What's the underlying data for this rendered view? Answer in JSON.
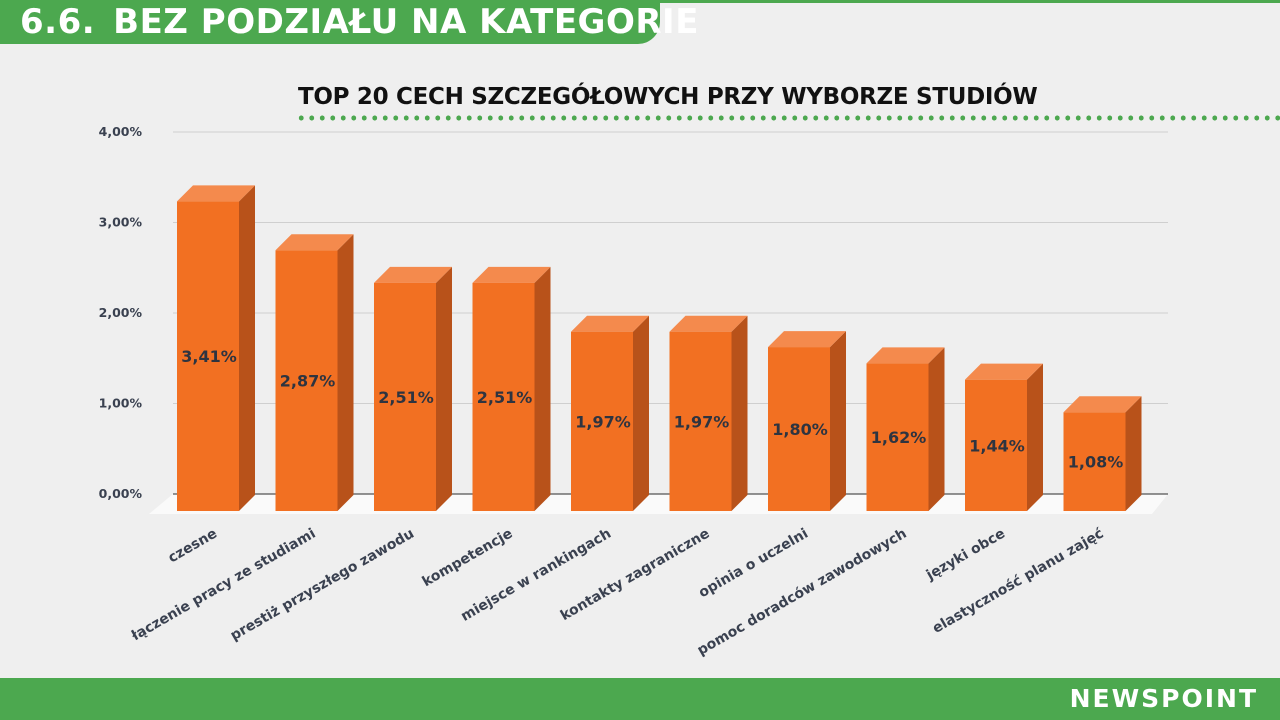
{
  "header": {
    "section_number": "6.6.",
    "title": "BEZ PODZIAŁU NA KATEGORIE"
  },
  "brand": "NEWSPOINT",
  "colors": {
    "green": "#4ca84f",
    "bar_front": "#f27022",
    "bar_top": "#f48a4d",
    "bar_side": "#b8521a"
  },
  "chart_data": {
    "type": "bar",
    "title": "TOP 20 CECH SZCZEGÓŁOWYCH PRZY WYBORZE STUDIÓW",
    "categories": [
      "czesne",
      "łączenie pracy ze studiami",
      "prestiż przyszłego zawodu",
      "kompetencje",
      "miejsce w rankingach",
      "kontakty zagraniczne",
      "opinia o uczelni",
      "pomoc doradców zawodowych",
      "języki obce",
      "elastyczność planu zajęć"
    ],
    "values": [
      3.41,
      2.87,
      2.51,
      2.51,
      1.97,
      1.97,
      1.8,
      1.62,
      1.44,
      1.08
    ],
    "data_labels": [
      "3,41%",
      "2,87%",
      "2,51%",
      "2,51%",
      "1,97%",
      "1,97%",
      "1,80%",
      "1,62%",
      "1,44%",
      "1,08%"
    ],
    "y_ticks": [
      "0,00%",
      "1,00%",
      "2,00%",
      "3,00%",
      "4,00%"
    ],
    "ylim": [
      0,
      4
    ],
    "grid": true,
    "legend": "none",
    "style": "3d"
  }
}
